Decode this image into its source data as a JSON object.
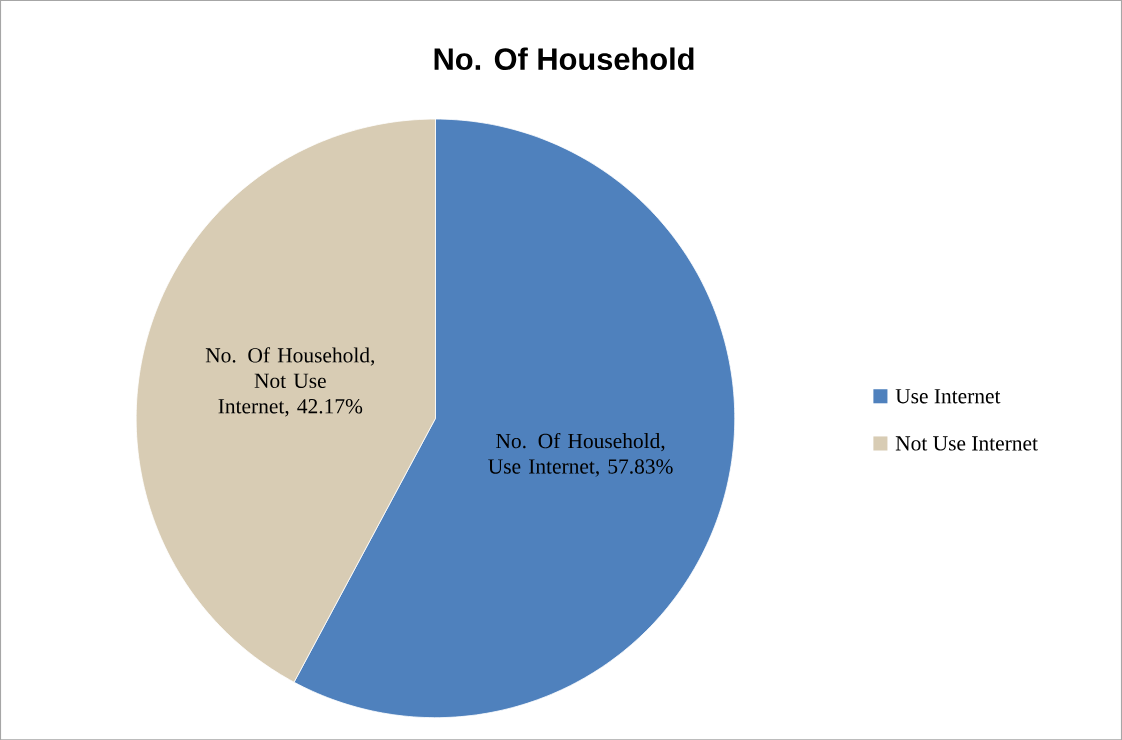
{
  "chart_data": {
    "type": "pie",
    "title": "No. Of Household",
    "categories": [
      "Use Internet",
      "Not Use Internet"
    ],
    "values": [
      57.83,
      42.17
    ],
    "colors": [
      "#4f81bd",
      "#d8ccb4"
    ],
    "value_labels": [
      "No. Of Household, Use Internet, 57.83%",
      "No. Of Household, Not Use Internet, 42.17%"
    ],
    "legend": "right"
  }
}
